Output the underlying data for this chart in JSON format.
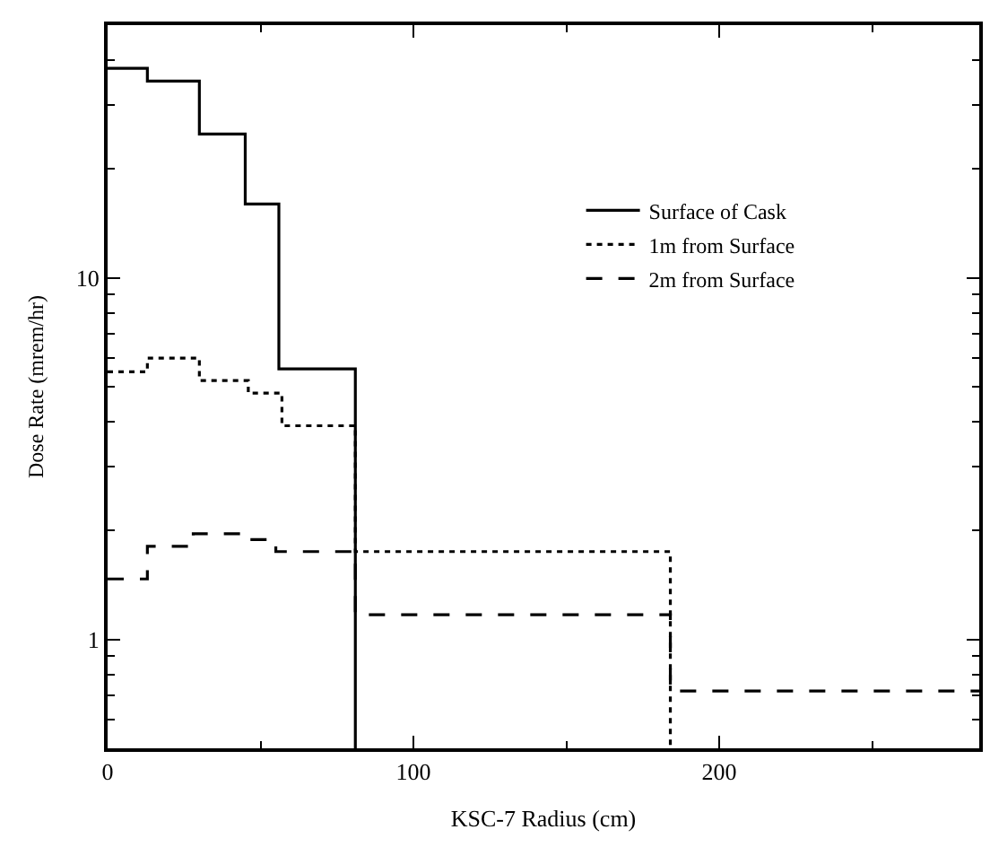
{
  "chart_data": {
    "type": "step",
    "xlabel": "KSC-7 Radius (cm)",
    "ylabel": "Dose Rate (mrem/hr)",
    "xlim": [
      0,
      285
    ],
    "xticks": [
      0,
      100,
      200
    ],
    "ylim": [
      0.5,
      50
    ],
    "yticks": [
      1,
      10
    ],
    "log": "y",
    "legend": "top right",
    "series": [
      {
        "name": "Surface of Cask",
        "color": "#000000",
        "line_style": "solid",
        "x": [
          0,
          13,
          30,
          45,
          56,
          81
        ],
        "values": [
          38,
          35,
          25,
          16,
          5.6,
          0.5
        ]
      },
      {
        "name": "1m from Surface",
        "color": "#000000",
        "line_style": "dotted",
        "x": [
          0,
          13,
          30,
          46,
          57,
          81,
          184
        ],
        "values": [
          5.5,
          6.0,
          5.2,
          4.8,
          3.9,
          1.75,
          0.5
        ]
      },
      {
        "name": "2m from Surface",
        "color": "#000000",
        "line_style": "dashed",
        "x": [
          0,
          13,
          28,
          45,
          55,
          81,
          184,
          285
        ],
        "values": [
          1.47,
          1.81,
          1.96,
          1.89,
          1.75,
          1.17,
          0.72,
          0.72
        ]
      }
    ]
  }
}
